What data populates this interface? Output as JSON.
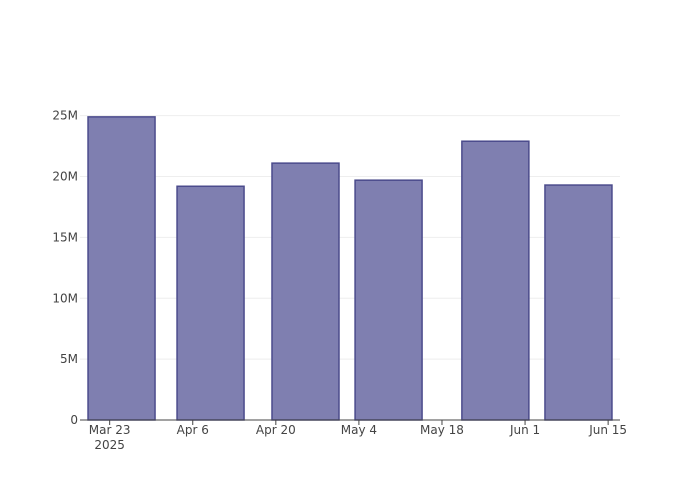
{
  "chart_data": {
    "type": "bar",
    "x": [
      "2025-03-25",
      "2025-04-09",
      "2025-04-25",
      "2025-05-09",
      "2025-05-27",
      "2025-06-10"
    ],
    "values": [
      24900000,
      19200000,
      21100000,
      19700000,
      22900000,
      19300000
    ],
    "color": "#7f7fb0",
    "edge_color": "#4b4b8c",
    "xlim": [
      "2025-03-18",
      "2025-06-17"
    ],
    "xticks": [
      {
        "value": "2025-03-23",
        "label": "Mar 23\n2025"
      },
      {
        "value": "2025-04-06",
        "label": "Apr 6"
      },
      {
        "value": "2025-04-20",
        "label": "Apr 20"
      },
      {
        "value": "2025-05-04",
        "label": "May 4"
      },
      {
        "value": "2025-05-18",
        "label": "May 18"
      },
      {
        "value": "2025-06-01",
        "label": "Jun 1"
      },
      {
        "value": "2025-06-15",
        "label": "Jun 15"
      }
    ],
    "ylim": [
      0,
      25300000
    ],
    "yticks": [
      0,
      {
        "value": 5000000,
        "label": "5M"
      },
      {
        "value": 10000000,
        "label": "10M"
      },
      {
        "value": 15000000,
        "label": "15M"
      },
      {
        "value": 20000000,
        "label": "20M"
      },
      {
        "value": 25000000,
        "label": "25M"
      }
    ],
    "grid": true
  }
}
